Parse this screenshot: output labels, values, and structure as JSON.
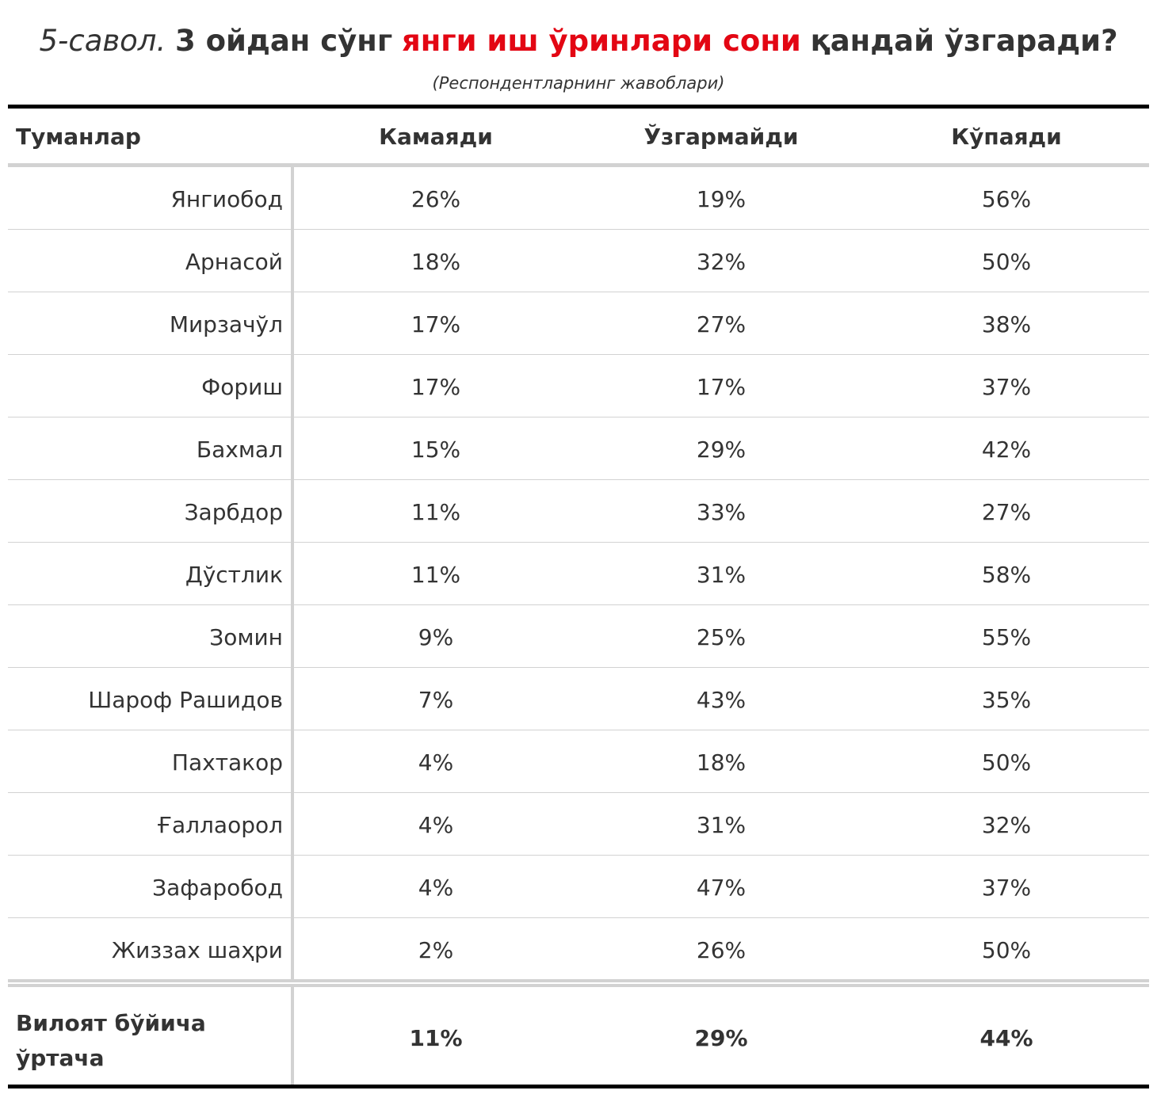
{
  "title": {
    "number": "5-савол.",
    "part1": "3 ойдан сўнг",
    "highlight": "янги иш ўринлари сони",
    "part2": "қандай ўзгаради?"
  },
  "subtitle": "(Респондентларнинг жавоблари)",
  "colors": {
    "highlight": "#e30613",
    "text": "#333333",
    "rule_dark": "#000000",
    "rule_light": "#d2d2d2"
  },
  "table": {
    "headers": [
      "Туманлар",
      "Камаяди",
      "Ўзгармайди",
      "Кўпаяди"
    ],
    "rows": [
      {
        "district": "Янгиобод",
        "decrease": "26%",
        "no_change": "19%",
        "increase": "56%"
      },
      {
        "district": "Арнасой",
        "decrease": "18%",
        "no_change": "32%",
        "increase": "50%"
      },
      {
        "district": "Мирзачўл",
        "decrease": "17%",
        "no_change": "27%",
        "increase": "38%"
      },
      {
        "district": "Фориш",
        "decrease": "17%",
        "no_change": "17%",
        "increase": "37%"
      },
      {
        "district": "Бахмал",
        "decrease": "15%",
        "no_change": "29%",
        "increase": "42%"
      },
      {
        "district": "Зарбдор",
        "decrease": "11%",
        "no_change": "33%",
        "increase": "27%"
      },
      {
        "district": "Дўстлик",
        "decrease": "11%",
        "no_change": "31%",
        "increase": "58%"
      },
      {
        "district": "Зомин",
        "decrease": "9%",
        "no_change": "25%",
        "increase": "55%"
      },
      {
        "district": "Шароф Рашидов",
        "decrease": "7%",
        "no_change": "43%",
        "increase": "35%"
      },
      {
        "district": "Пахтакор",
        "decrease": "4%",
        "no_change": "18%",
        "increase": "50%"
      },
      {
        "district": "Ғаллаорол",
        "decrease": "4%",
        "no_change": "31%",
        "increase": "32%"
      },
      {
        "district": "Зафаробод",
        "decrease": "4%",
        "no_change": "47%",
        "increase": "37%"
      },
      {
        "district": "Жиззах шаҳри",
        "decrease": "2%",
        "no_change": "26%",
        "increase": "50%"
      }
    ],
    "footer": {
      "label": "Вилоят бўйича ўртача",
      "decrease": "11%",
      "no_change": "29%",
      "increase": "44%"
    }
  }
}
